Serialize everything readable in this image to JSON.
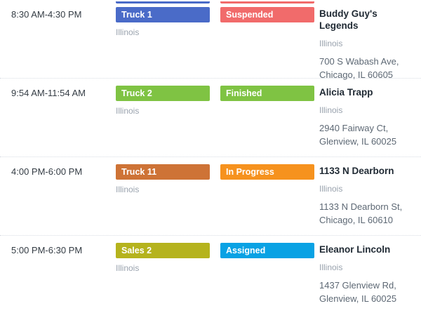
{
  "clipped_previous_row": {
    "truck_color": "#4a6bc8",
    "status_color": "#f16b6b"
  },
  "rows": [
    {
      "time": "8:30 AM-4:30 PM",
      "truck": {
        "label": "Truck 1",
        "color": "#4a6bc8",
        "region": "Illinois"
      },
      "status": {
        "label": "Suspended",
        "color": "#f16b6b"
      },
      "destination": {
        "name": "Buddy Guy's Legends",
        "region": "Illinois",
        "address_line1": "700 S Wabash Ave,",
        "address_line2": "Chicago, IL 60605"
      }
    },
    {
      "time": "9:54 AM-11:54 AM",
      "truck": {
        "label": "Truck 2",
        "color": "#7fc343",
        "region": "Illinois"
      },
      "status": {
        "label": "Finished",
        "color": "#7fc343"
      },
      "destination": {
        "name": "Alicia Trapp",
        "region": "Illinois",
        "address_line1": "2940 Fairway Ct,",
        "address_line2": "Glenview, IL 60025"
      }
    },
    {
      "time": "4:00 PM-6:00 PM",
      "truck": {
        "label": "Truck 11",
        "color": "#ce7336",
        "region": "Illinois"
      },
      "status": {
        "label": "In Progress",
        "color": "#f6921e"
      },
      "destination": {
        "name": "1133 N Dearborn",
        "region": "Illinois",
        "address_line1": "1133 N Dearborn St,",
        "address_line2": "Chicago, IL 60610"
      }
    },
    {
      "time": "5:00 PM-6:30 PM",
      "truck": {
        "label": "Sales 2",
        "color": "#b5b31d",
        "region": "Illinois"
      },
      "status": {
        "label": "Assigned",
        "color": "#09a2e4"
      },
      "destination": {
        "name": "Eleanor Lincoln",
        "region": "Illinois",
        "address_line1": "1437 Glenview Rd,",
        "address_line2": "Glenview, IL 60025"
      }
    }
  ]
}
